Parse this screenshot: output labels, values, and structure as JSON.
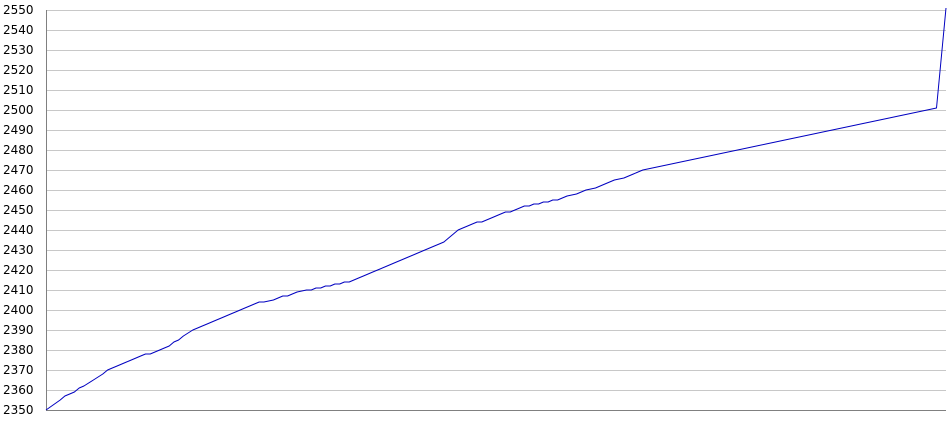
{
  "chart_data": {
    "type": "line",
    "title": "",
    "xlabel": "",
    "ylabel": "",
    "ylim": [
      2350,
      2550
    ],
    "yticks": [
      2350,
      2360,
      2370,
      2380,
      2390,
      2400,
      2410,
      2420,
      2430,
      2440,
      2450,
      2460,
      2470,
      2480,
      2490,
      2500,
      2510,
      2520,
      2530,
      2540,
      2550
    ],
    "grid": true,
    "legend": "none",
    "x": [
      0,
      3,
      4,
      5,
      6,
      7,
      8,
      10,
      12,
      13,
      14,
      15,
      16,
      17,
      18,
      19,
      20,
      21,
      22,
      24,
      25,
      26,
      27,
      28,
      29,
      31,
      32,
      33,
      34,
      35,
      36,
      37,
      38,
      39,
      40,
      41,
      42,
      43,
      44,
      45,
      46,
      48,
      49,
      50,
      51,
      52,
      53,
      55,
      56,
      57,
      58,
      59,
      60,
      61,
      62,
      63,
      64,
      65,
      66,
      67,
      68,
      69,
      70,
      72,
      74,
      75,
      76,
      78,
      80,
      82,
      83,
      84,
      85,
      86,
      87,
      88,
      89,
      90,
      91,
      92,
      93,
      94,
      95,
      96,
      97,
      98,
      99,
      100,
      101,
      102,
      103,
      104,
      105,
      106,
      107,
      108,
      109,
      110,
      112,
      114,
      116,
      118,
      120,
      122,
      124,
      126,
      128,
      130,
      132,
      134,
      136,
      138,
      140,
      142,
      144,
      146,
      148,
      150,
      152,
      154,
      156,
      158,
      160,
      162,
      164,
      166,
      168,
      170,
      172,
      174,
      176,
      178,
      180,
      182,
      184,
      186,
      188,
      190
    ],
    "series": [
      {
        "color": "#0000c0",
        "values": [
          2350,
          2355,
          2357,
          2358,
          2359,
          2361,
          2362,
          2365,
          2368,
          2370,
          2371,
          2372,
          2373,
          2374,
          2375,
          2376,
          2377,
          2378,
          2378,
          2380,
          2381,
          2382,
          2384,
          2385,
          2387,
          2390,
          2391,
          2392,
          2393,
          2394,
          2395,
          2396,
          2397,
          2398,
          2399,
          2400,
          2401,
          2402,
          2403,
          2404,
          2404,
          2405,
          2406,
          2407,
          2407,
          2408,
          2409,
          2410,
          2410,
          2411,
          2411,
          2412,
          2412,
          2413,
          2413,
          2414,
          2414,
          2415,
          2416,
          2417,
          2418,
          2419,
          2420,
          2422,
          2424,
          2425,
          2426,
          2428,
          2430,
          2432,
          2433,
          2434,
          2436,
          2438,
          2440,
          2441,
          2442,
          2443,
          2444,
          2444,
          2445,
          2446,
          2447,
          2448,
          2449,
          2449,
          2450,
          2451,
          2452,
          2452,
          2453,
          2453,
          2454,
          2454,
          2455,
          2455,
          2456,
          2457,
          2458,
          2460,
          2461,
          2463,
          2465,
          2466,
          2468,
          2470,
          2471,
          2472,
          2473,
          2474,
          2475,
          2476,
          2477,
          2478,
          2479,
          2480,
          2481,
          2482,
          2483,
          2484,
          2485,
          2486,
          2487,
          2488,
          2489,
          2490,
          2491,
          2492,
          2493,
          2494,
          2495,
          2496,
          2497,
          2498,
          2499,
          2500,
          2501,
          2551
        ]
      }
    ]
  }
}
